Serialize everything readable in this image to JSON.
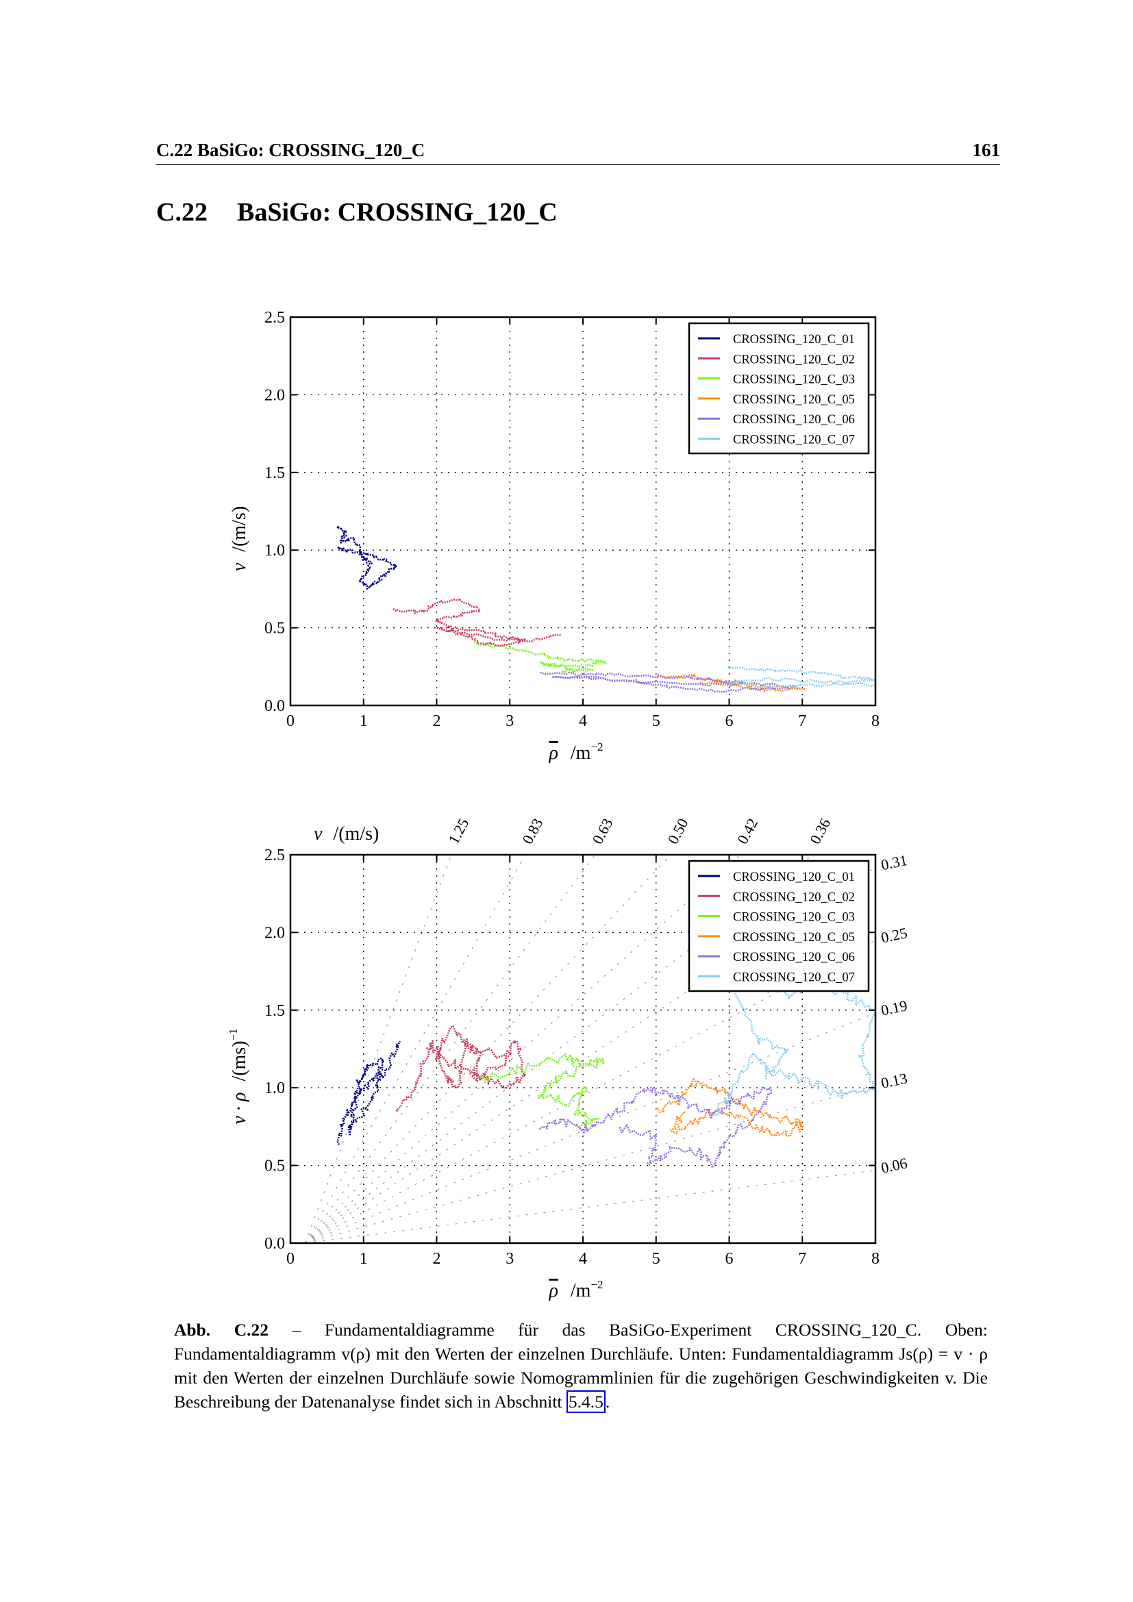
{
  "running_head": {
    "title": "C.22 BaSiGo: CROSSING_120_C",
    "page_number": "161"
  },
  "section": {
    "number": "C.22",
    "title": "BaSiGo: CROSSING_120_C"
  },
  "colors": {
    "CROSSING_120_C_01": "#000080",
    "CROSSING_120_C_02": "#c83c5a",
    "CROSSING_120_C_03": "#7cf01e",
    "CROSSING_120_C_05": "#ff8c14",
    "CROSSING_120_C_06": "#9370db",
    "CROSSING_120_C_07": "#87ceeb",
    "link_box": "#0000e0"
  },
  "chart_data": [
    {
      "type": "line",
      "title": "",
      "xlabel": "ρ̄ /m⁻²",
      "xlabel_parts": {
        "symbol": "ρ",
        "unit": "/m",
        "exp": "−2"
      },
      "ylabel": "v̄ /(m/s)",
      "ylabel_parts": {
        "symbol": "v",
        "unit": "/(m/s)"
      },
      "xlim": [
        0,
        8
      ],
      "ylim": [
        0,
        2.5
      ],
      "xticks": [
        "0",
        "1",
        "2",
        "3",
        "4",
        "5",
        "6",
        "7",
        "8"
      ],
      "yticks": [
        "0.0",
        "0.5",
        "1.0",
        "1.5",
        "2.0",
        "2.5"
      ],
      "grid": true,
      "legend_position": "top-right",
      "series": [
        {
          "name": "CROSSING_120_C_01",
          "points": [
            [
              0.65,
              1.15
            ],
            [
              0.75,
              1.12
            ],
            [
              0.7,
              1.05
            ],
            [
              0.85,
              1.08
            ],
            [
              0.95,
              1.0
            ],
            [
              1.0,
              0.95
            ],
            [
              1.1,
              0.92
            ],
            [
              1.05,
              0.85
            ],
            [
              0.95,
              0.8
            ],
            [
              1.05,
              0.76
            ],
            [
              1.2,
              0.8
            ],
            [
              1.3,
              0.85
            ],
            [
              1.45,
              0.9
            ],
            [
              1.2,
              0.95
            ],
            [
              1.0,
              0.98
            ],
            [
              0.75,
              1.0
            ],
            [
              0.65,
              1.02
            ]
          ]
        },
        {
          "name": "CROSSING_120_C_02",
          "points": [
            [
              1.4,
              0.62
            ],
            [
              1.8,
              0.6
            ],
            [
              2.0,
              0.66
            ],
            [
              2.3,
              0.68
            ],
            [
              2.6,
              0.62
            ],
            [
              2.3,
              0.58
            ],
            [
              2.0,
              0.55
            ],
            [
              2.2,
              0.5
            ],
            [
              2.6,
              0.48
            ],
            [
              2.9,
              0.44
            ],
            [
              3.2,
              0.42
            ],
            [
              2.9,
              0.39
            ],
            [
              2.6,
              0.4
            ],
            [
              2.4,
              0.45
            ],
            [
              2.0,
              0.5
            ],
            [
              2.8,
              0.43
            ],
            [
              3.3,
              0.42
            ],
            [
              3.7,
              0.45
            ]
          ]
        },
        {
          "name": "CROSSING_120_C_03",
          "points": [
            [
              2.5,
              0.4
            ],
            [
              3.0,
              0.37
            ],
            [
              3.4,
              0.33
            ],
            [
              3.7,
              0.3
            ],
            [
              4.0,
              0.29
            ],
            [
              4.3,
              0.28
            ],
            [
              3.9,
              0.25
            ],
            [
              3.6,
              0.26
            ],
            [
              3.4,
              0.27
            ],
            [
              3.8,
              0.24
            ],
            [
              4.1,
              0.23
            ],
            [
              3.7,
              0.22
            ]
          ]
        },
        {
          "name": "CROSSING_120_C_05",
          "points": [
            [
              5.0,
              0.18
            ],
            [
              5.5,
              0.19
            ],
            [
              5.8,
              0.16
            ],
            [
              6.0,
              0.15
            ],
            [
              6.3,
              0.13
            ],
            [
              6.6,
              0.12
            ],
            [
              7.0,
              0.11
            ],
            [
              6.5,
              0.1
            ],
            [
              6.0,
              0.13
            ],
            [
              5.6,
              0.15
            ]
          ]
        },
        {
          "name": "CROSSING_120_C_06",
          "points": [
            [
              3.4,
              0.21
            ],
            [
              3.9,
              0.2
            ],
            [
              4.4,
              0.2
            ],
            [
              4.9,
              0.19
            ],
            [
              5.4,
              0.18
            ],
            [
              5.9,
              0.16
            ],
            [
              6.4,
              0.14
            ],
            [
              6.9,
              0.12
            ],
            [
              6.3,
              0.11
            ],
            [
              5.8,
              0.09
            ],
            [
              5.2,
              0.12
            ],
            [
              4.8,
              0.15
            ],
            [
              4.3,
              0.17
            ],
            [
              3.6,
              0.19
            ],
            [
              5.6,
              0.13
            ],
            [
              6.2,
              0.15
            ]
          ]
        },
        {
          "name": "CROSSING_120_C_07",
          "points": [
            [
              6.0,
              0.25
            ],
            [
              6.5,
              0.23
            ],
            [
              7.0,
              0.22
            ],
            [
              7.5,
              0.19
            ],
            [
              8.0,
              0.17
            ],
            [
              7.6,
              0.14
            ],
            [
              7.0,
              0.13
            ],
            [
              6.5,
              0.12
            ],
            [
              6.0,
              0.14
            ],
            [
              6.5,
              0.17
            ],
            [
              7.0,
              0.16
            ],
            [
              7.5,
              0.15
            ],
            [
              8.0,
              0.13
            ]
          ]
        }
      ]
    },
    {
      "type": "line",
      "title": "",
      "xlabel": "ρ̄ /m⁻²",
      "xlabel_parts": {
        "symbol": "ρ",
        "unit": "/m",
        "exp": "−2"
      },
      "ylabel": "v̄ · ρ̄ /(ms)⁻¹",
      "ylabel_parts": {
        "symbol": "v · ρ",
        "unit": "/(ms)",
        "exp": "−1"
      },
      "top_label_parts": {
        "symbol": "v",
        "unit": "/(m/s)"
      },
      "xlim": [
        0,
        8
      ],
      "ylim": [
        0,
        2.5
      ],
      "xticks": [
        "0",
        "1",
        "2",
        "3",
        "4",
        "5",
        "6",
        "7",
        "8"
      ],
      "yticks": [
        "0.0",
        "0.5",
        "1.0",
        "1.5",
        "2.0",
        "2.5"
      ],
      "grid": true,
      "legend_position": "top-right",
      "nomogram": {
        "offset_rho": 0.2,
        "top_speeds": [
          "1.25",
          "0.83",
          "0.63",
          "0.50",
          "0.42",
          "0.36"
        ],
        "right_speeds": [
          "0.31",
          "0.25",
          "0.19",
          "0.13",
          "0.06"
        ]
      },
      "series": [
        {
          "name": "CROSSING_120_C_01",
          "points": [
            [
              0.65,
              0.62
            ],
            [
              0.7,
              0.78
            ],
            [
              0.85,
              0.9
            ],
            [
              0.95,
              1.05
            ],
            [
              1.05,
              1.12
            ],
            [
              1.25,
              1.18
            ],
            [
              1.2,
              1.0
            ],
            [
              1.0,
              0.85
            ],
            [
              0.8,
              0.72
            ],
            [
              0.9,
              0.95
            ],
            [
              1.1,
              1.05
            ],
            [
              1.3,
              1.1
            ],
            [
              1.5,
              1.3
            ]
          ]
        },
        {
          "name": "CROSSING_120_C_02",
          "points": [
            [
              1.45,
              0.85
            ],
            [
              1.7,
              1.0
            ],
            [
              1.85,
              1.2
            ],
            [
              1.95,
              1.3
            ],
            [
              2.1,
              1.08
            ],
            [
              2.3,
              1.0
            ],
            [
              2.4,
              1.3
            ],
            [
              2.6,
              1.2
            ],
            [
              2.5,
              1.05
            ],
            [
              2.9,
              1.15
            ],
            [
              3.1,
              1.3
            ],
            [
              3.2,
              1.08
            ],
            [
              3.0,
              1.0
            ],
            [
              2.7,
              1.05
            ],
            [
              2.4,
              1.12
            ],
            [
              2.0,
              1.2
            ],
            [
              2.2,
              1.38
            ],
            [
              2.5,
              1.25
            ],
            [
              3.0,
              1.2
            ]
          ]
        },
        {
          "name": "CROSSING_120_C_03",
          "points": [
            [
              2.6,
              1.05
            ],
            [
              3.0,
              1.1
            ],
            [
              3.4,
              1.15
            ],
            [
              3.8,
              1.2
            ],
            [
              4.0,
              1.15
            ],
            [
              4.3,
              1.17
            ],
            [
              3.9,
              1.1
            ],
            [
              3.6,
              1.05
            ],
            [
              3.4,
              0.95
            ],
            [
              3.8,
              0.9
            ],
            [
              4.05,
              1.0
            ],
            [
              3.9,
              0.85
            ],
            [
              4.2,
              0.78
            ],
            [
              3.9,
              0.75
            ]
          ]
        },
        {
          "name": "CROSSING_120_C_05",
          "points": [
            [
              5.0,
              0.85
            ],
            [
              5.3,
              0.9
            ],
            [
              5.5,
              1.05
            ],
            [
              5.8,
              1.0
            ],
            [
              6.0,
              0.95
            ],
            [
              6.3,
              0.85
            ],
            [
              6.6,
              0.8
            ],
            [
              6.9,
              0.78
            ],
            [
              7.0,
              0.76
            ],
            [
              6.7,
              0.68
            ],
            [
              6.5,
              0.72
            ],
            [
              6.2,
              0.8
            ],
            [
              5.9,
              0.85
            ],
            [
              5.5,
              0.78
            ],
            [
              5.2,
              0.72
            ],
            [
              5.4,
              0.85
            ]
          ]
        },
        {
          "name": "CROSSING_120_C_06",
          "points": [
            [
              3.4,
              0.74
            ],
            [
              3.7,
              0.8
            ],
            [
              4.0,
              0.72
            ],
            [
              4.3,
              0.8
            ],
            [
              4.6,
              0.9
            ],
            [
              4.9,
              1.0
            ],
            [
              5.2,
              0.95
            ],
            [
              5.5,
              0.88
            ],
            [
              5.8,
              0.82
            ],
            [
              6.0,
              0.9
            ],
            [
              6.3,
              0.95
            ],
            [
              6.6,
              1.0
            ],
            [
              6.3,
              0.78
            ],
            [
              6.0,
              0.7
            ],
            [
              5.8,
              0.5
            ],
            [
              5.6,
              0.58
            ],
            [
              5.2,
              0.6
            ],
            [
              4.9,
              0.5
            ],
            [
              5.0,
              0.68
            ],
            [
              4.5,
              0.75
            ]
          ]
        },
        {
          "name": "CROSSING_120_C_07",
          "points": [
            [
              5.8,
              0.82
            ],
            [
              6.0,
              0.95
            ],
            [
              6.3,
              1.2
            ],
            [
              6.6,
              1.1
            ],
            [
              7.0,
              1.05
            ],
            [
              7.3,
              1.0
            ],
            [
              7.6,
              0.95
            ],
            [
              8.0,
              1.0
            ],
            [
              7.8,
              1.2
            ],
            [
              8.0,
              1.5
            ],
            [
              7.6,
              1.6
            ],
            [
              7.2,
              1.65
            ],
            [
              6.8,
              1.6
            ],
            [
              6.3,
              1.65
            ],
            [
              6.0,
              1.7
            ],
            [
              6.4,
              1.3
            ],
            [
              6.8,
              1.25
            ],
            [
              6.5,
              1.05
            ]
          ]
        }
      ]
    }
  ],
  "caption": {
    "label": "Abb. C.22",
    "text_before_link": " – Fundamentaldiagramme für das BaSiGo-Experiment CROSSING_120_C. Oben: Fundamentaldiagramm v(ρ) mit den Werten der einzelnen Durchläufe. Unten: Fundamentaldiagramm Js(ρ) = v · ρ mit den Werten der einzelnen Durchläufe sowie Nomogrammlinien für die zugehörigen Geschwindigkeiten v. Die Beschreibung der Datenanalyse findet sich in Abschnitt ",
    "link": "5.4.5",
    "text_after_link": "."
  }
}
